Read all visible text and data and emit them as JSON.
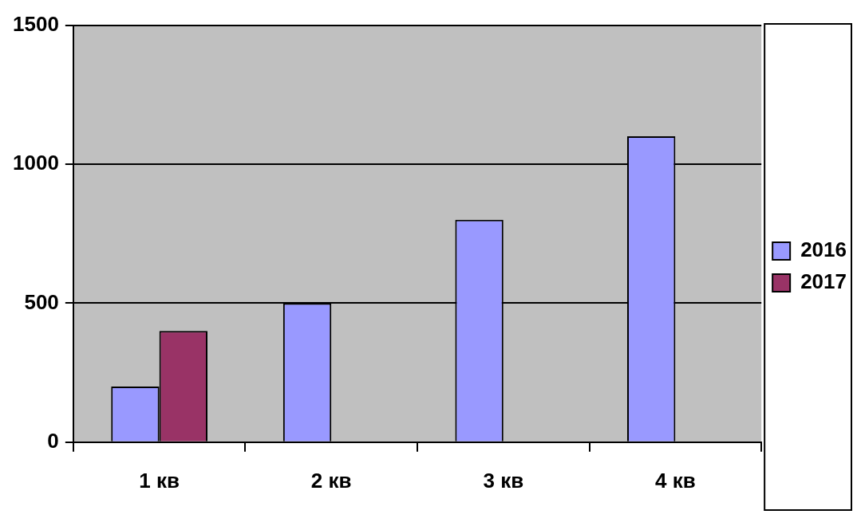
{
  "chart_data": {
    "type": "bar",
    "categories": [
      "1 кв",
      "2 кв",
      "3 кв",
      "4 кв"
    ],
    "series": [
      {
        "name": "2016",
        "color": "#9999ff",
        "values": [
          200,
          500,
          800,
          1100
        ]
      },
      {
        "name": "2017",
        "color": "#993366",
        "values": [
          400,
          null,
          null,
          null
        ]
      }
    ],
    "ylim": [
      0,
      1500
    ],
    "yticks": [
      0,
      500,
      1000,
      1500
    ],
    "grid": "y",
    "legend": "right"
  }
}
